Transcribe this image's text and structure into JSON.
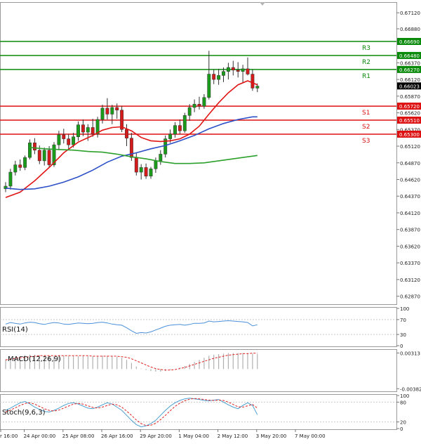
{
  "chart_data": {
    "type": "candlestick",
    "instrument_note": "4-hour chart with moving averages, RSI, MACD, Stochastic",
    "price_axis": {
      "ylim": [
        0.6275,
        0.6728
      ],
      "ticks": [
        0.6712,
        0.6688,
        0.6637,
        0.6612,
        0.6587,
        0.6562,
        0.6537,
        0.6512,
        0.6487,
        0.6462,
        0.6437,
        0.6412,
        0.6387,
        0.6362,
        0.6337,
        0.6312,
        0.6287
      ],
      "tick_labels": [
        "0.67120",
        "0.66880",
        "0.66370",
        "0.66120",
        "0.65870",
        "0.65620",
        "0.65370",
        "0.65120",
        "0.64870",
        "0.64620",
        "0.64370",
        "0.64120",
        "0.63870",
        "0.63620",
        "0.63370",
        "0.63120",
        "0.62870"
      ],
      "current_price": 0.66023,
      "current_price_label": "0.66023"
    },
    "levels": [
      {
        "name": "R3",
        "value": 0.6669,
        "label": "0.66690",
        "color": "#0a8a0a"
      },
      {
        "name": "R2",
        "value": 0.6648,
        "label": "0.66480",
        "color": "#0a8a0a"
      },
      {
        "name": "R1",
        "value": 0.6627,
        "label": "0.66270",
        "color": "#0a8a0a"
      },
      {
        "name": "S1",
        "value": 0.6572,
        "label": "0.65720",
        "color": "#dd1111"
      },
      {
        "name": "S2",
        "value": 0.6551,
        "label": "0.65510",
        "color": "#dd1111"
      },
      {
        "name": "S3",
        "value": 0.653,
        "label": "0.65300",
        "color": "#dd1111"
      }
    ],
    "time_axis": {
      "labels": [
        "r 16:00",
        "24 Apr 00:00",
        "25 Apr 08:00",
        "26 Apr 16:00",
        "29 Apr 20:00",
        "1 May 04:00",
        "2 May 12:00",
        "3 May 20:00",
        "7 May 00:00"
      ],
      "label_candle_index": [
        0,
        4,
        12,
        20,
        28,
        36,
        44,
        52,
        60
      ]
    },
    "candles": [
      [
        0.6448,
        0.6458,
        0.6443,
        0.6452
      ],
      [
        0.6452,
        0.6478,
        0.6447,
        0.6473
      ],
      [
        0.6473,
        0.649,
        0.6468,
        0.6484
      ],
      [
        0.6484,
        0.6492,
        0.6475,
        0.648
      ],
      [
        0.648,
        0.6498,
        0.6476,
        0.6495
      ],
      [
        0.6495,
        0.6522,
        0.6492,
        0.6517
      ],
      [
        0.6517,
        0.6524,
        0.65,
        0.6506
      ],
      [
        0.6506,
        0.6513,
        0.6485,
        0.649
      ],
      [
        0.649,
        0.651,
        0.6483,
        0.6506
      ],
      [
        0.6506,
        0.6512,
        0.648,
        0.6484
      ],
      [
        0.6484,
        0.6518,
        0.6481,
        0.6514
      ],
      [
        0.6514,
        0.6535,
        0.6506,
        0.6529
      ],
      [
        0.6529,
        0.6538,
        0.6516,
        0.6523
      ],
      [
        0.6523,
        0.653,
        0.6508,
        0.6514
      ],
      [
        0.6514,
        0.6532,
        0.651,
        0.6526
      ],
      [
        0.6526,
        0.6549,
        0.652,
        0.6544
      ],
      [
        0.6544,
        0.6552,
        0.6527,
        0.6533
      ],
      [
        0.6533,
        0.6545,
        0.652,
        0.654
      ],
      [
        0.654,
        0.6553,
        0.6526,
        0.653
      ],
      [
        0.653,
        0.6556,
        0.6525,
        0.6552
      ],
      [
        0.6552,
        0.6574,
        0.6546,
        0.6569
      ],
      [
        0.6569,
        0.6584,
        0.6552,
        0.656
      ],
      [
        0.656,
        0.6574,
        0.6545,
        0.657
      ],
      [
        0.657,
        0.6576,
        0.6553,
        0.6566
      ],
      [
        0.6566,
        0.6572,
        0.6533,
        0.6537
      ],
      [
        0.6537,
        0.6545,
        0.6512,
        0.6524
      ],
      [
        0.6524,
        0.6532,
        0.649,
        0.6495
      ],
      [
        0.6495,
        0.6502,
        0.6468,
        0.6473
      ],
      [
        0.6473,
        0.6485,
        0.6462,
        0.648
      ],
      [
        0.648,
        0.6486,
        0.6463,
        0.6467
      ],
      [
        0.6467,
        0.6481,
        0.6463,
        0.6478
      ],
      [
        0.6478,
        0.6495,
        0.6472,
        0.649
      ],
      [
        0.649,
        0.6506,
        0.6484,
        0.65
      ],
      [
        0.65,
        0.6528,
        0.6495,
        0.6523
      ],
      [
        0.6523,
        0.6537,
        0.6517,
        0.653
      ],
      [
        0.653,
        0.6548,
        0.6525,
        0.6543
      ],
      [
        0.6543,
        0.6552,
        0.653,
        0.6535
      ],
      [
        0.6535,
        0.6562,
        0.6532,
        0.6558
      ],
      [
        0.6558,
        0.6575,
        0.655,
        0.657
      ],
      [
        0.657,
        0.6582,
        0.6563,
        0.6575
      ],
      [
        0.6575,
        0.6586,
        0.6567,
        0.6572
      ],
      [
        0.6572,
        0.659,
        0.6568,
        0.6585
      ],
      [
        0.6585,
        0.6655,
        0.6582,
        0.662
      ],
      [
        0.662,
        0.6627,
        0.6605,
        0.6612
      ],
      [
        0.6612,
        0.6628,
        0.6604,
        0.6618
      ],
      [
        0.6618,
        0.663,
        0.6608,
        0.6624
      ],
      [
        0.6624,
        0.6637,
        0.6612,
        0.663
      ],
      [
        0.663,
        0.664,
        0.6618,
        0.6626
      ],
      [
        0.6626,
        0.6638,
        0.6615,
        0.6624
      ],
      [
        0.6624,
        0.6634,
        0.6606,
        0.6628
      ],
      [
        0.6628,
        0.6645,
        0.6618,
        0.662
      ],
      [
        0.662,
        0.6627,
        0.6595,
        0.6599
      ],
      [
        0.6599,
        0.6606,
        0.6593,
        0.6602
      ]
    ],
    "moving_averages": [
      {
        "name": "fast MA",
        "color": "#e01515",
        "points": [
          [
            0,
            0.6435
          ],
          [
            3,
            0.6443
          ],
          [
            6,
            0.646
          ],
          [
            9,
            0.648
          ],
          [
            12,
            0.6502
          ],
          [
            15,
            0.6518
          ],
          [
            18,
            0.6528
          ],
          [
            20,
            0.6536
          ],
          [
            22,
            0.654
          ],
          [
            24,
            0.6541
          ],
          [
            26,
            0.6535
          ],
          [
            28,
            0.6525
          ],
          [
            30,
            0.652
          ],
          [
            32,
            0.6519
          ],
          [
            34,
            0.652
          ],
          [
            36,
            0.6523
          ],
          [
            38,
            0.653
          ],
          [
            40,
            0.6542
          ],
          [
            42,
            0.656
          ],
          [
            44,
            0.6577
          ],
          [
            46,
            0.6592
          ],
          [
            48,
            0.6604
          ],
          [
            50,
            0.661
          ],
          [
            52,
            0.6604
          ]
        ]
      },
      {
        "name": "mid MA",
        "color": "#2d50c8",
        "points": [
          [
            0,
            0.6449
          ],
          [
            3,
            0.6447
          ],
          [
            6,
            0.6448
          ],
          [
            9,
            0.6452
          ],
          [
            12,
            0.6458
          ],
          [
            15,
            0.6466
          ],
          [
            18,
            0.6476
          ],
          [
            21,
            0.6488
          ],
          [
            24,
            0.6497
          ],
          [
            27,
            0.6502
          ],
          [
            30,
            0.6508
          ],
          [
            33,
            0.6513
          ],
          [
            36,
            0.652
          ],
          [
            39,
            0.6528
          ],
          [
            42,
            0.6538
          ],
          [
            45,
            0.6546
          ],
          [
            48,
            0.6552
          ],
          [
            51,
            0.6556
          ],
          [
            52,
            0.6556
          ]
        ]
      },
      {
        "name": "slow MA",
        "color": "#2ca02c",
        "points": [
          [
            5,
            0.651
          ],
          [
            8,
            0.6508
          ],
          [
            11,
            0.6507
          ],
          [
            14,
            0.6506
          ],
          [
            17,
            0.6504
          ],
          [
            20,
            0.6503
          ],
          [
            23,
            0.65
          ],
          [
            26,
            0.6496
          ],
          [
            29,
            0.6493
          ],
          [
            32,
            0.6489
          ],
          [
            35,
            0.6486
          ],
          [
            38,
            0.6486
          ],
          [
            41,
            0.6487
          ],
          [
            44,
            0.649
          ],
          [
            47,
            0.6493
          ],
          [
            50,
            0.6496
          ],
          [
            52,
            0.6498
          ]
        ]
      }
    ],
    "rsi": {
      "label": "RSI(14)",
      "ticks": [
        100,
        70,
        30,
        0
      ],
      "tick_labels": [
        "100",
        "70",
        "30",
        "0"
      ],
      "ylim": [
        0,
        100
      ],
      "values": [
        58,
        62,
        60,
        58,
        61,
        63,
        62,
        59,
        57,
        60,
        62,
        61,
        58,
        57,
        59,
        61,
        60,
        59,
        60,
        62,
        63,
        61,
        58,
        56,
        55,
        48,
        40,
        33,
        35,
        34,
        37,
        42,
        47,
        52,
        55,
        56,
        57,
        55,
        57,
        60,
        60,
        61,
        66,
        64,
        65,
        66,
        67,
        66,
        65,
        64,
        62,
        53,
        56
      ]
    },
    "macd": {
      "label": "MACD(12,26,9)",
      "ticks": [
        0.00313,
        -0.003827
      ],
      "tick_labels": [
        "0.00313",
        "-0.003827"
      ],
      "ylim": [
        -0.0042,
        0.0036
      ],
      "histogram": [
        0.0019,
        0.0021,
        0.0023,
        0.0025,
        0.0027,
        0.0028,
        0.0028,
        0.0027,
        0.0026,
        0.0025,
        0.0025,
        0.0026,
        0.0026,
        0.0025,
        0.0025,
        0.0025,
        0.0026,
        0.0025,
        0.0025,
        0.0025,
        0.0026,
        0.0026,
        0.0025,
        0.0024,
        0.0022,
        0.0018,
        0.0012,
        0.0005,
        0.0001,
        -0.0002,
        -0.0004,
        -0.0005,
        -0.0005,
        -0.0004,
        -0.0002,
        0.0,
        0.0003,
        0.0006,
        0.001,
        0.0014,
        0.0018,
        0.0022,
        0.0026,
        0.0028,
        0.0029,
        0.003,
        0.0031,
        0.0031,
        0.0031,
        0.0031,
        0.0031,
        0.003,
        0.0029
      ],
      "signal": [
        0.0018,
        0.0019,
        0.0021,
        0.0022,
        0.0023,
        0.0024,
        0.0025,
        0.0026,
        0.0026,
        0.0026,
        0.0026,
        0.0026,
        0.0026,
        0.0026,
        0.0026,
        0.0026,
        0.0026,
        0.0026,
        0.0025,
        0.0025,
        0.0025,
        0.0025,
        0.0025,
        0.0025,
        0.0024,
        0.0023,
        0.002,
        0.0016,
        0.0012,
        0.0008,
        0.0004,
        0.0001,
        -0.0001,
        -0.0002,
        -0.0002,
        -0.0001,
        0.0001,
        0.0003,
        0.0006,
        0.0009,
        0.0012,
        0.0015,
        0.0018,
        0.0021,
        0.0023,
        0.0025,
        0.0027,
        0.0028,
        0.0029,
        0.003,
        0.003,
        0.0031,
        0.0031
      ]
    },
    "stochastic": {
      "label": "Stoch(9,6,3)",
      "ticks": [
        100,
        80,
        20,
        0
      ],
      "tick_labels": [
        "100",
        "80",
        "20",
        "0"
      ],
      "ylim": [
        0,
        100
      ],
      "main": [
        55,
        62,
        70,
        78,
        82,
        75,
        65,
        58,
        52,
        50,
        55,
        62,
        70,
        76,
        78,
        74,
        68,
        62,
        60,
        65,
        72,
        78,
        74,
        65,
        55,
        40,
        25,
        12,
        5,
        8,
        15,
        25,
        40,
        55,
        68,
        78,
        85,
        90,
        92,
        90,
        88,
        85,
        84,
        86,
        88,
        80,
        72,
        65,
        60,
        70,
        78,
        70,
        42
      ],
      "signal": [
        50,
        56,
        63,
        70,
        76,
        78,
        74,
        67,
        60,
        55,
        53,
        56,
        62,
        68,
        74,
        76,
        74,
        69,
        64,
        62,
        65,
        70,
        74,
        72,
        65,
        53,
        40,
        26,
        15,
        9,
        10,
        16,
        27,
        40,
        54,
        67,
        77,
        84,
        89,
        91,
        90,
        88,
        86,
        85,
        86,
        85,
        80,
        73,
        66,
        65,
        69,
        73,
        62
      ]
    }
  }
}
